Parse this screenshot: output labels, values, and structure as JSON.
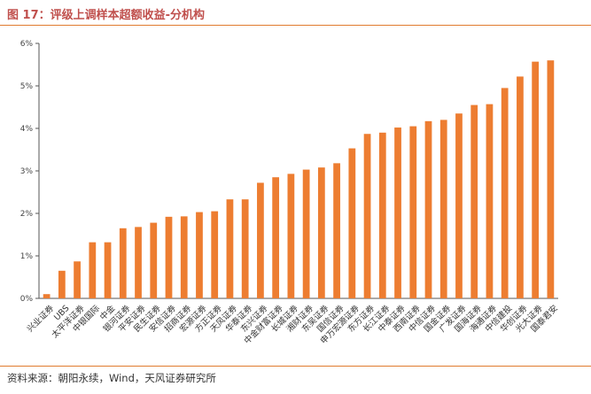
{
  "header": {
    "title": "图 17：评级上调样本超额收益-分机构"
  },
  "footer": {
    "source": "资料来源：朝阳永续，Wind，天风证券研究所"
  },
  "chart_data": {
    "type": "bar",
    "title": "",
    "xlabel": "",
    "ylabel": "",
    "ylim": [
      0,
      6
    ],
    "y_ticks": [
      0,
      1,
      2,
      3,
      4,
      5,
      6
    ],
    "y_tick_format": "percent",
    "grid": false,
    "bar_color": "#ed7d31",
    "categories": [
      "兴业证券",
      "UBS",
      "太平洋证券",
      "中银国际",
      "中金",
      "银河证券",
      "平安证券",
      "民生证券",
      "安信证券",
      "招商证券",
      "宏源证券",
      "方正证券",
      "天风证券",
      "华泰证券",
      "东兴证券",
      "中金财富证券",
      "长城证券",
      "湘财证券",
      "东吴证券",
      "国信证券",
      "申万宏源证券",
      "东方证券",
      "长江证券",
      "中泰证券",
      "西南证券",
      "中信证券",
      "国金证券",
      "广发证券",
      "国海证券",
      "海通证券",
      "中信建投",
      "华创证券",
      "光大证券",
      "国泰君安"
    ],
    "values": [
      0.1,
      0.65,
      0.87,
      1.32,
      1.32,
      1.65,
      1.68,
      1.78,
      1.92,
      1.93,
      2.03,
      2.05,
      2.33,
      2.33,
      2.72,
      2.85,
      2.93,
      3.03,
      3.08,
      3.18,
      3.53,
      3.87,
      3.9,
      4.02,
      4.05,
      4.17,
      4.2,
      4.35,
      4.55,
      4.57,
      4.95,
      5.22,
      5.57,
      5.6
    ]
  }
}
